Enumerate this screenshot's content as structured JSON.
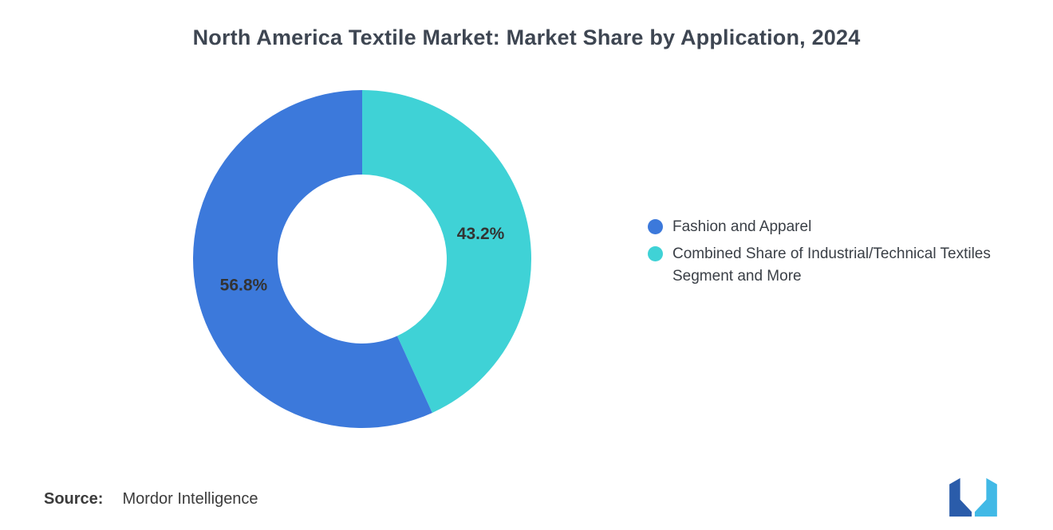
{
  "title": "North America Textile Market: Market Share by Application, 2024",
  "chart_data": {
    "type": "pie",
    "donut": true,
    "title": "North America Textile Market: Market Share by Application, 2024",
    "unit": "%",
    "start_angle": "top",
    "direction": "clockwise",
    "inner_radius_ratio": 0.5,
    "legend_position": "right",
    "labels": [
      "Combined Share of Industrial/Technical Textiles Segment and More",
      "Fashion and Apparel"
    ],
    "values": [
      43.2,
      56.8
    ],
    "display_labels": [
      "43.2%",
      "56.8%"
    ],
    "colors": [
      "#3fd2d6",
      "#3c79db"
    ]
  },
  "legend": {
    "items": [
      {
        "label": "Fashion and Apparel",
        "color": "#3c79db"
      },
      {
        "label": "Combined Share of Industrial/Technical Textiles Segment and More",
        "color": "#3fd2d6"
      }
    ]
  },
  "source": {
    "label": "Source:",
    "value": "Mordor Intelligence"
  },
  "logo": {
    "name": "mordor-intelligence-logo",
    "dark": "#2a5caa",
    "light": "#41b9e6"
  }
}
